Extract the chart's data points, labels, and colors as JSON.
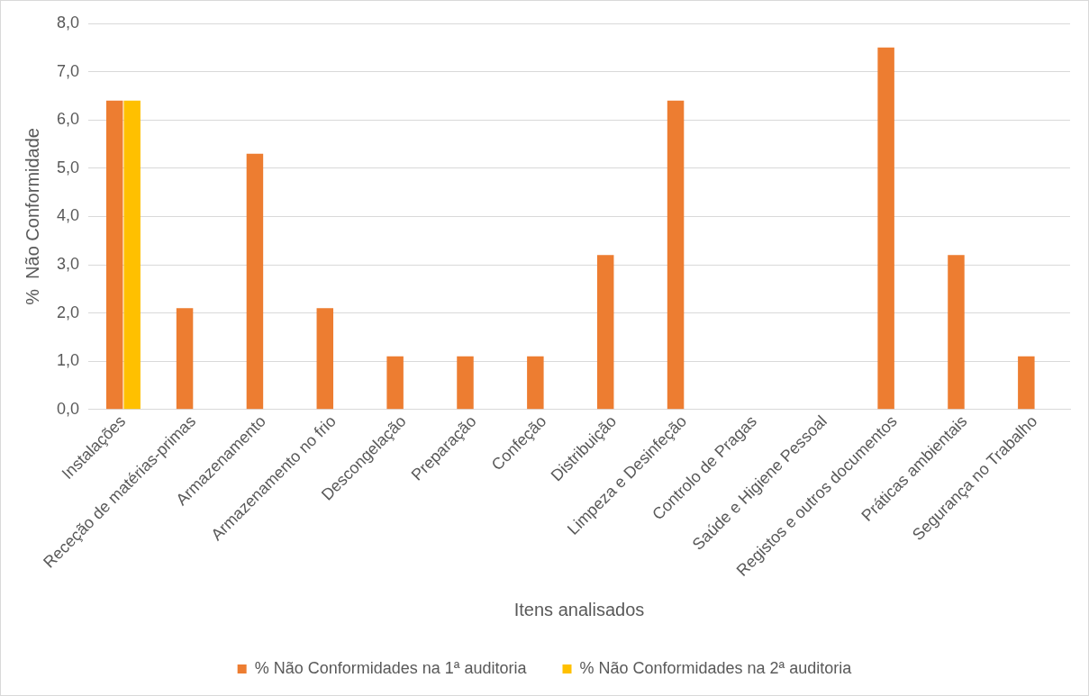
{
  "chart_data": {
    "type": "bar",
    "xlabel": "Itens analisados",
    "ylabel": "%  Não Conformidade",
    "categories": [
      "Instalações",
      "Receção de matérias-primas",
      "Armazenamento",
      "Armazenamento no frio",
      "Descongelação",
      "Preparação",
      "Confeção",
      "Distribuição",
      "Limpeza e Desinfeção",
      "Controlo de Pragas",
      "Saúde e Higiene Pessoal",
      "Registos e outros documentos",
      "Práticas ambientais",
      "Segurança no Trabalho"
    ],
    "series": [
      {
        "name": "% Não Conformidades na 1ª auditoria",
        "color": "#ed7d31",
        "values": [
          6.4,
          2.1,
          5.3,
          2.1,
          1.1,
          1.1,
          1.1,
          3.2,
          6.4,
          0,
          0,
          7.5,
          3.2,
          1.1
        ]
      },
      {
        "name": "% Não Conformidades na 2ª auditoria",
        "color": "#ffc000",
        "values": [
          6.4,
          0,
          0,
          0,
          0,
          0,
          0,
          0,
          0,
          0,
          0,
          0,
          0,
          0
        ]
      }
    ],
    "ylim": [
      0,
      8
    ],
    "yticks": [
      {
        "value": 0,
        "label": "0,0"
      },
      {
        "value": 1,
        "label": "1,0"
      },
      {
        "value": 2,
        "label": "2,0"
      },
      {
        "value": 3,
        "label": "3,0"
      },
      {
        "value": 4,
        "label": "4,0"
      },
      {
        "value": 5,
        "label": "5,0"
      },
      {
        "value": 6,
        "label": "6,0"
      },
      {
        "value": 7,
        "label": "7,0"
      },
      {
        "value": 8,
        "label": "8,0"
      }
    ],
    "grid": "y",
    "legend": "bottom"
  }
}
